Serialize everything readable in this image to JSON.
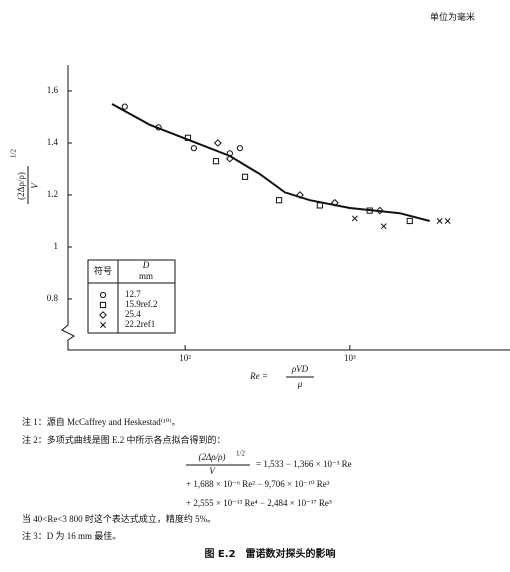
{
  "unit_note": "单位为毫米",
  "chart_data": {
    "type": "scatter",
    "y_label": {
      "numerator": "(2Δρ/ρ)",
      "exponent": "1/2",
      "denominator": "V"
    },
    "x_label": {
      "lhs": "Re =",
      "numerator": "ρVD",
      "denominator": "μ"
    },
    "x_log": true,
    "xlim": [
      20,
      9000
    ],
    "xticks": [
      {
        "value": 100,
        "label": "10²"
      },
      {
        "value": 1000,
        "label": "10³"
      }
    ],
    "ylim": [
      0.7,
      1.7
    ],
    "yticks": [
      1.6,
      1.4,
      1.2,
      1,
      0.8
    ],
    "color": "#111111",
    "legend_title": {
      "symbol": "符号",
      "variable": "D",
      "unit": "mm"
    },
    "series": [
      {
        "name": "12.7",
        "marker": "circle",
        "x": [
          43,
          69,
          113,
          187,
          215
        ],
        "values": [
          1.54,
          1.46,
          1.38,
          1.36,
          1.38
        ]
      },
      {
        "name": "15.9ref.2",
        "marker": "square",
        "x": [
          104,
          154,
          231,
          372,
          658,
          1321,
          2311
        ],
        "values": [
          1.42,
          1.33,
          1.27,
          1.18,
          1.16,
          1.14,
          1.1
        ]
      },
      {
        "name": "25.4",
        "marker": "diamond",
        "x": [
          158,
          187,
          498,
          811,
          1521
        ],
        "values": [
          1.4,
          1.34,
          1.2,
          1.17,
          1.14
        ]
      },
      {
        "name": "22.2ref1",
        "marker": "x",
        "x": [
          1072,
          1606,
          3507,
          3927
        ],
        "values": [
          1.11,
          1.08,
          1.1,
          1.1
        ]
      },
      {
        "style": "line",
        "x": [
          36,
          61,
          107,
          187,
          285,
          404,
          572,
          1000,
          2010,
          3055
        ],
        "values": [
          1.55,
          1.47,
          1.41,
          1.35,
          1.28,
          1.21,
          1.18,
          1.15,
          1.13,
          1.1
        ]
      }
    ]
  },
  "notes": {
    "note1": "注 1：源自 McCaffrey and Heskestad⁽¹⁰⁾。",
    "note2": "注 2：多项式曲线是图 E.2 中所示各点拟合得到的：",
    "formula": {
      "numerator": "(2Δρ/ρ)",
      "exponent": "1/2",
      "denominator": "V",
      "lines": [
        "= 1,533 − 1,366 × 10⁻³ Re",
        "+ 1,688 × 10⁻⁶ Re² − 9,706 × 10⁻¹⁰ Re³",
        "+ 2,555 × 10⁻¹³ Re⁴ − 2,484 × 10⁻¹⁷ Re⁵"
      ]
    },
    "validity": "当 40<Re<3 800 时这个表达式成立，精度约 5%。",
    "note3": "注 3：D 为 16 mm 最佳。"
  },
  "caption": "图 E.2　雷诺数对探头的影响"
}
